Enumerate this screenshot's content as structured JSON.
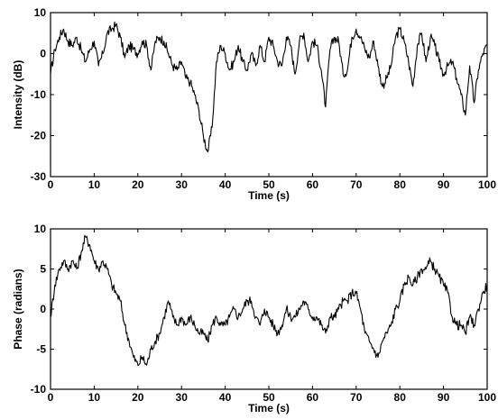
{
  "chart_data": [
    {
      "type": "line",
      "title": "",
      "xlabel": "Time (s)",
      "ylabel": "Intensity (dB)",
      "xlim": [
        0,
        100
      ],
      "ylim": [
        -30,
        10
      ],
      "xticks": [
        "0",
        "10",
        "20",
        "30",
        "40",
        "50",
        "60",
        "70",
        "80",
        "90",
        "100"
      ],
      "yticks": [
        "10",
        "0",
        "-10",
        "-20",
        "-30"
      ],
      "grid": false,
      "series": [
        {
          "x": [
            0,
            1,
            2,
            3,
            4,
            5,
            6,
            7,
            8,
            9,
            10,
            11,
            12,
            13,
            14,
            15,
            16,
            17,
            18,
            19,
            20,
            21,
            22,
            23,
            24,
            25,
            26,
            27,
            28,
            29,
            30,
            31,
            32,
            33,
            34,
            35,
            36,
            37,
            38,
            39,
            40,
            41,
            42,
            43,
            44,
            45,
            46,
            47,
            48,
            49,
            50,
            51,
            52,
            53,
            54,
            55,
            56,
            57,
            58,
            59,
            60,
            61,
            62,
            63,
            64,
            65,
            66,
            67,
            68,
            69,
            70,
            71,
            72,
            73,
            74,
            75,
            76,
            77,
            78,
            79,
            80,
            81,
            82,
            83,
            84,
            85,
            86,
            87,
            88,
            89,
            90,
            91,
            92,
            93,
            94,
            95,
            96,
            97,
            98,
            99,
            100
          ],
          "y": [
            -5,
            1,
            4,
            6,
            3,
            2,
            4,
            1,
            -2,
            1,
            3,
            -3,
            0,
            5,
            6,
            7,
            4,
            -1,
            2,
            1,
            0,
            3,
            2,
            -4,
            3,
            4,
            3,
            0,
            -3,
            -4,
            -2,
            -6,
            -7,
            -10,
            -14,
            -20,
            -24,
            -18,
            -2,
            2,
            0,
            -4,
            -2,
            2,
            -2,
            -4,
            0,
            -3,
            2,
            -2,
            4,
            2,
            -2,
            -3,
            4,
            2,
            -5,
            3,
            5,
            -2,
            3,
            2,
            -4,
            -13,
            1,
            4,
            3,
            -5,
            -4,
            4,
            6,
            4,
            1,
            -1,
            3,
            -3,
            -8,
            -6,
            -3,
            4,
            6,
            3,
            -2,
            -8,
            2,
            5,
            -2,
            4,
            2,
            -2,
            -5,
            -3,
            -2,
            -6,
            -10,
            -15,
            -3,
            -12,
            -4,
            0,
            2
          ]
        }
      ]
    },
    {
      "type": "line",
      "title": "",
      "xlabel": "Time (s)",
      "ylabel": "Phase (radians)",
      "xlim": [
        0,
        100
      ],
      "ylim": [
        -10,
        10
      ],
      "xticks": [
        "0",
        "10",
        "20",
        "30",
        "40",
        "50",
        "60",
        "70",
        "80",
        "90",
        "100"
      ],
      "yticks": [
        "10",
        "5",
        "0",
        "-5",
        "-10"
      ],
      "grid": false,
      "series": [
        {
          "x": [
            0,
            1,
            2,
            3,
            4,
            5,
            6,
            7,
            8,
            9,
            10,
            11,
            12,
            13,
            14,
            15,
            16,
            17,
            18,
            19,
            20,
            21,
            22,
            23,
            24,
            25,
            26,
            27,
            28,
            29,
            30,
            31,
            32,
            33,
            34,
            35,
            36,
            37,
            38,
            39,
            40,
            41,
            42,
            43,
            44,
            45,
            46,
            47,
            48,
            49,
            50,
            51,
            52,
            53,
            54,
            55,
            56,
            57,
            58,
            59,
            60,
            61,
            62,
            63,
            64,
            65,
            66,
            67,
            68,
            69,
            70,
            71,
            72,
            73,
            74,
            75,
            76,
            77,
            78,
            79,
            80,
            81,
            82,
            83,
            84,
            85,
            86,
            87,
            88,
            89,
            90,
            91,
            92,
            93,
            94,
            95,
            96,
            97,
            98,
            99,
            100
          ],
          "y": [
            -1,
            3,
            5,
            6,
            5,
            6,
            5,
            7,
            9,
            8,
            6,
            5,
            6,
            5,
            3,
            2,
            1,
            -2,
            -4,
            -6,
            -7,
            -6,
            -7,
            -5,
            -4,
            -3,
            -1,
            1,
            -1,
            -2,
            -1,
            -2,
            -1,
            -2,
            -3,
            -3,
            -4,
            -2,
            -1,
            -2,
            -2,
            -1,
            0,
            -1,
            0,
            1,
            1,
            -1,
            -2,
            0,
            -1,
            -2,
            -3,
            -2,
            0,
            -1,
            -1,
            0,
            1,
            0,
            -1,
            -1,
            -2,
            -3,
            -1,
            -1,
            0,
            1,
            1,
            2,
            2,
            0,
            -3,
            -4,
            -5,
            -6,
            -4,
            -3,
            -2,
            0,
            1,
            3,
            4,
            3,
            4,
            5,
            5,
            6,
            5,
            4,
            3,
            2,
            -1,
            -2,
            -2,
            -3,
            -1,
            -2,
            0,
            2,
            3
          ]
        }
      ]
    }
  ]
}
